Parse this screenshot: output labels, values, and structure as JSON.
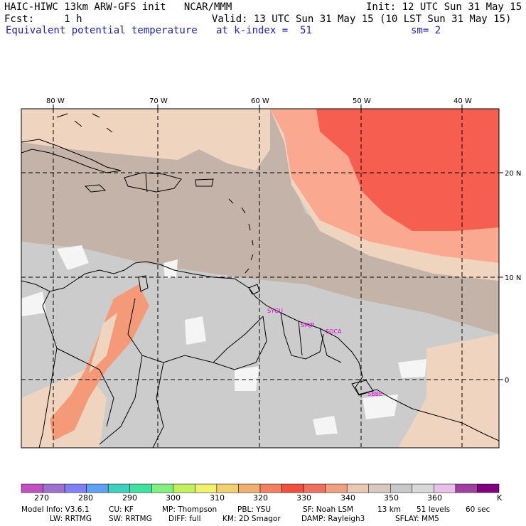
{
  "header": {
    "left1": "HAIC-HIWC 13km ARW-GFS init   NCAR/MMM",
    "left2": "Fcst:     1 h",
    "left3": "Equivalent potential temperature",
    "right1": "Init: 12 UTC Sun 31 May 15",
    "right2": "Valid: 13 UTC Sun 31 May 15 (10 LST Sun 31 May 15)",
    "right3a": "at k-index =  51",
    "right3b": "sm= 2"
  },
  "map": {
    "lon_labels": [
      "80 W",
      "70 W",
      "60 W",
      "50 W",
      "40 W"
    ],
    "lat_labels": [
      "20 N",
      "10 N",
      "0"
    ],
    "stations": [
      "SYGU",
      "SMJP",
      "SOCA",
      "SBBE"
    ],
    "fill_colors": {
      "gray": "#cccccc",
      "tan": "#c4b3a9",
      "peach": "#efd4c0",
      "salmon": "#fba890",
      "red": "#f65f50",
      "orange": "#f59a78",
      "white": "#f5f5f5"
    }
  },
  "colorbar": {
    "colors": [
      "#c050c0",
      "#a070d0",
      "#8080f0",
      "#60a0f0",
      "#40d0c0",
      "#40e0a0",
      "#80f080",
      "#c0f060",
      "#f0f070",
      "#f0d070",
      "#f0b070",
      "#f08060",
      "#f05040",
      "#f07060",
      "#f0a080",
      "#e8c8b0",
      "#d8c8c0",
      "#c8c8c8",
      "#d8d8d8",
      "#e8c0e8",
      "#a040a0",
      "#800080"
    ],
    "labels": [
      "270",
      "280",
      "290",
      "300",
      "310",
      "320",
      "330",
      "340",
      "350",
      "360"
    ],
    "unit": "K"
  },
  "footer": {
    "line1a": "Model Info: V3.6.1",
    "line1b": "CU: KF",
    "line1c": "MP: Thompson",
    "line1d": "PBL: YSU",
    "line1e": "SF: Noah LSM",
    "line1f": "13 km",
    "line1g": "51 levels",
    "line1h": "60 sec",
    "line2a": "LW: RRTMG",
    "line2b": "SW: RRTMG",
    "line2c": "DIFF: full",
    "line2d": "KM: 2D Smagor",
    "line2e": "DAMP: Rayleigh3",
    "line2f": "SFLAY: MM5"
  }
}
